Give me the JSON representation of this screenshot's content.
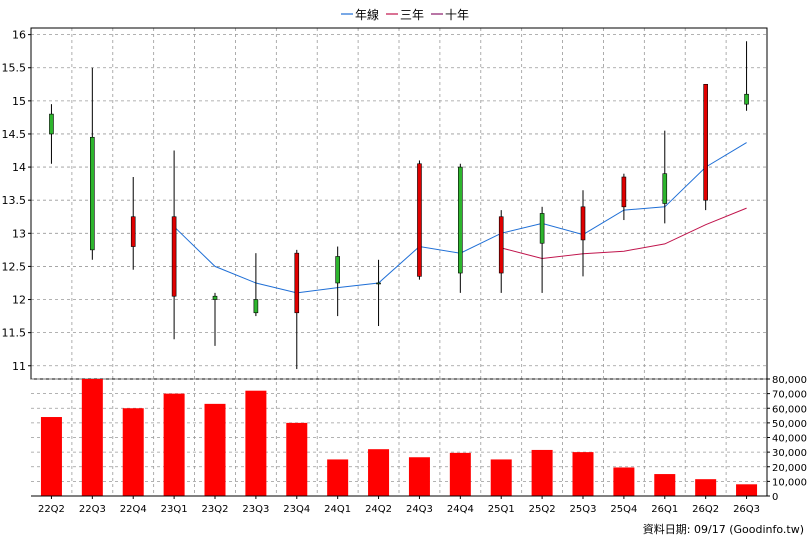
{
  "chart_data": [
    {
      "type": "candlestick",
      "legend": [
        {
          "label": "年線",
          "color": "#1f6fd6"
        },
        {
          "label": "三年",
          "color": "#c0144c"
        },
        {
          "label": "十年",
          "color": "#8a1a6a"
        }
      ],
      "legend_placement": "top-center",
      "grid": true,
      "ylim": [
        10.8,
        16.1
      ],
      "y_ticks": [
        "11",
        "11.5",
        "12",
        "12.5",
        "13",
        "13.5",
        "14",
        "14.5",
        "15",
        "15.5",
        "16"
      ],
      "categories": [
        "22Q2",
        "22Q3",
        "22Q4",
        "23Q1",
        "23Q2",
        "23Q3",
        "23Q4",
        "24Q1",
        "24Q2",
        "24Q3",
        "24Q4",
        "25Q1",
        "25Q2",
        "25Q3",
        "25Q4",
        "26Q1",
        "26Q2",
        "26Q3"
      ],
      "ohlc": [
        {
          "open": 14.5,
          "high": 14.95,
          "low": 14.05,
          "close": 14.8
        },
        {
          "open": 12.75,
          "high": 15.5,
          "low": 12.6,
          "close": 14.45
        },
        {
          "open": 13.25,
          "high": 13.85,
          "low": 12.45,
          "close": 12.8
        },
        {
          "open": 13.25,
          "high": 14.25,
          "low": 11.4,
          "close": 12.05
        },
        {
          "open": 12.0,
          "high": 12.1,
          "low": 11.3,
          "close": 12.05
        },
        {
          "open": 11.8,
          "high": 12.7,
          "low": 11.75,
          "close": 12.0
        },
        {
          "open": 12.7,
          "high": 12.75,
          "low": 10.95,
          "close": 11.8
        },
        {
          "open": 12.25,
          "high": 12.8,
          "low": 11.75,
          "close": 12.65
        },
        {
          "open": 12.25,
          "high": 12.6,
          "low": 11.6,
          "close": 12.25
        },
        {
          "open": 14.05,
          "high": 14.1,
          "low": 12.3,
          "close": 12.35
        },
        {
          "open": 12.4,
          "high": 14.05,
          "low": 12.1,
          "close": 14.0
        },
        {
          "open": 13.25,
          "high": 13.35,
          "low": 12.1,
          "close": 12.4
        },
        {
          "open": 12.85,
          "high": 13.4,
          "low": 12.1,
          "close": 13.3
        },
        {
          "open": 13.4,
          "high": 13.65,
          "low": 12.35,
          "close": 12.9
        },
        {
          "open": 13.85,
          "high": 13.9,
          "low": 13.2,
          "close": 13.4
        },
        {
          "open": 13.45,
          "high": 14.55,
          "low": 13.15,
          "close": 13.9
        },
        {
          "open": 15.25,
          "high": 15.25,
          "low": 13.35,
          "close": 13.5
        },
        {
          "open": 14.95,
          "high": 15.9,
          "low": 14.85,
          "close": 15.1
        }
      ],
      "series": [
        {
          "name": "年線",
          "values": [
            null,
            null,
            null,
            13.1,
            12.5,
            12.25,
            12.1,
            12.18,
            12.25,
            12.8,
            12.7,
            13.0,
            13.15,
            12.98,
            13.35,
            13.4,
            14.0,
            14.37
          ]
        },
        {
          "name": "三年",
          "values": [
            null,
            null,
            null,
            null,
            null,
            null,
            null,
            null,
            null,
            null,
            null,
            12.78,
            12.62,
            12.69,
            12.73,
            12.84,
            13.13,
            13.38
          ]
        }
      ]
    },
    {
      "type": "bar",
      "categories": [
        "22Q2",
        "22Q3",
        "22Q4",
        "23Q1",
        "23Q2",
        "23Q3",
        "23Q4",
        "24Q1",
        "24Q2",
        "24Q3",
        "24Q4",
        "25Q1",
        "25Q2",
        "25Q3",
        "25Q4",
        "26Q1",
        "26Q2",
        "26Q3"
      ],
      "values": [
        54000,
        80000,
        60000,
        70000,
        63000,
        72000,
        50000,
        25000,
        32000,
        26500,
        29500,
        25000,
        31500,
        30000,
        19500,
        15000,
        11500,
        8000
      ],
      "color": "#ff0000",
      "ylim": [
        0,
        80000
      ],
      "y_ticks": [
        "0",
        "10,000",
        "20,000",
        "30,000",
        "40,000",
        "50,000",
        "60,000",
        "70,000",
        "80,000"
      ]
    }
  ],
  "colors": {
    "up": "#2db52d",
    "down": "#e00000",
    "grid": "#999999",
    "volume": "#ff0000"
  },
  "source_text": "資料日期: 09/17 (Goodinfo.tw)"
}
